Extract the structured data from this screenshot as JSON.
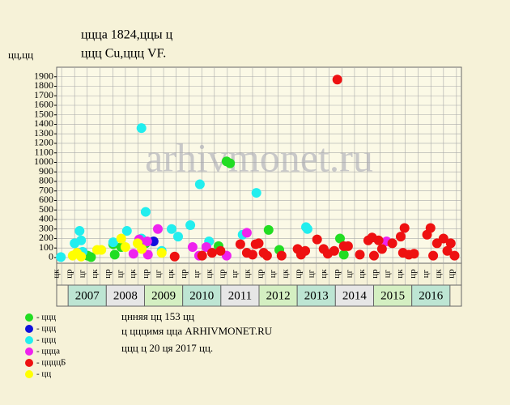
{
  "chart_data": {
    "type": "scatter",
    "title": "цццa 1824,ццы ц",
    "subtitle": "ццц Cu,ццц VF.",
    "y_label": "цц,цц",
    "watermark": "arhivmonet.ru",
    "notes": [
      "цнняя цц 153 цц",
      "ц цццимя цца ARHIVMONET.RU",
      "ццц ц 20 ця 2017 цц."
    ],
    "xlim": [
      2006.7,
      2017.3
    ],
    "ylim": [
      -60,
      2000
    ],
    "yticks": [
      0,
      100,
      200,
      300,
      400,
      500,
      600,
      700,
      800,
      900,
      1000,
      1100,
      1200,
      1300,
      1400,
      1500,
      1600,
      1700,
      1800,
      1900
    ],
    "years": [
      2007,
      2008,
      2009,
      2010,
      2011,
      2012,
      2013,
      2014,
      2015,
      2016
    ],
    "periods": [
      2006.83,
      2007.17,
      2007.5,
      2007.83,
      2008.17,
      2008.5,
      2008.83,
      2009.17,
      2009.5,
      2009.83,
      2010.17,
      2010.5,
      2010.83,
      2011.17,
      2011.5,
      2011.83,
      2012.17,
      2012.5,
      2012.83,
      2013.17,
      2013.5,
      2013.83,
      2014.17,
      2014.5,
      2014.83,
      2015.17,
      2015.5,
      2015.83,
      2016.17,
      2016.5,
      2016.83,
      2017.17
    ],
    "period_labels": [
      "цк",
      "цр",
      "цг",
      "цк",
      "цр",
      "цг",
      "цк",
      "цр",
      "цг",
      "цк",
      "цр",
      "цг",
      "цк",
      "цр",
      "цг",
      "цк",
      "цр",
      "цг",
      "цк",
      "цр",
      "цг",
      "цк",
      "цр",
      "цг",
      "цк",
      "цр",
      "цг",
      "цк",
      "цр",
      "цг",
      "цк",
      "цр"
    ],
    "grid": true,
    "series": [
      {
        "name": "- ццц",
        "color": "#22dd22",
        "x": [
          2007.51,
          2007.6,
          2008.18,
          2008.22,
          2008.39,
          2009.03,
          2010.94,
          2011.15,
          2011.24,
          2012.25,
          2012.53,
          2014.12,
          2014.22
        ],
        "values": [
          20,
          5,
          140,
          30,
          110,
          150,
          120,
          1010,
          990,
          290,
          80,
          200,
          30
        ]
      },
      {
        "name": "- ццц",
        "color": "#1010dd",
        "x": [
          2009.24,
          2008.86
        ],
        "values": [
          170,
          180
        ]
      },
      {
        "name": "- ццц",
        "color": "#22eeee",
        "x": [
          2006.81,
          2007.17,
          2007.3,
          2007.34,
          2007.38,
          2008.18,
          2008.54,
          2008.92,
          2009.03,
          2008.92,
          2009.71,
          2009.88,
          2010.2,
          2010.45,
          2010.69,
          2011.93,
          2011.57,
          2013.23,
          2013.27,
          2009.45
        ],
        "values": [
          5,
          150,
          280,
          180,
          60,
          160,
          280,
          1360,
          480,
          200,
          300,
          220,
          340,
          770,
          170,
          680,
          240,
          320,
          300,
          70
        ]
      },
      {
        "name": "- цццa",
        "color": "#ee22ee",
        "x": [
          2008.71,
          2008.86,
          2009.09,
          2009.35,
          2010.26,
          2010.43,
          2010.62,
          2011.15,
          2011.68,
          2015.34,
          2009.07
        ],
        "values": [
          40,
          190,
          30,
          300,
          110,
          20,
          110,
          20,
          260,
          170,
          170
        ]
      },
      {
        "name": "- ццццБ",
        "color": "#ee1111",
        "x": [
          2009.79,
          2010.51,
          2010.77,
          2010.99,
          2011.51,
          2011.68,
          2011.83,
          2011.91,
          2011.99,
          2012.12,
          2012.21,
          2012.59,
          2013.01,
          2013.1,
          2013.21,
          2013.52,
          2013.69,
          2013.8,
          2013.97,
          2014.05,
          2014.22,
          2014.33,
          2014.64,
          2014.86,
          2014.96,
          2015.01,
          2015.13,
          2015.22,
          2015.49,
          2015.71,
          2015.81,
          2015.77,
          2015.92,
          2016.06,
          2016.4,
          2016.49,
          2016.56,
          2016.66,
          2016.83,
          2016.93,
          2017.02,
          2017.12
        ],
        "values": [
          10,
          20,
          50,
          70,
          140,
          50,
          30,
          140,
          150,
          50,
          20,
          20,
          90,
          30,
          70,
          190,
          90,
          40,
          70,
          1870,
          120,
          120,
          30,
          180,
          210,
          20,
          180,
          90,
          150,
          220,
          310,
          50,
          30,
          40,
          240,
          310,
          20,
          150,
          200,
          70,
          150,
          20
        ]
      },
      {
        "name": "- цц",
        "color": "#ffff00",
        "x": [
          2007.12,
          2007.23,
          2007.34,
          2007.76,
          2007.87,
          2008.39,
          2008.5,
          2008.82,
          2008.93,
          2009.45
        ],
        "values": [
          20,
          50,
          10,
          80,
          80,
          200,
          110,
          150,
          90,
          50
        ]
      }
    ]
  }
}
